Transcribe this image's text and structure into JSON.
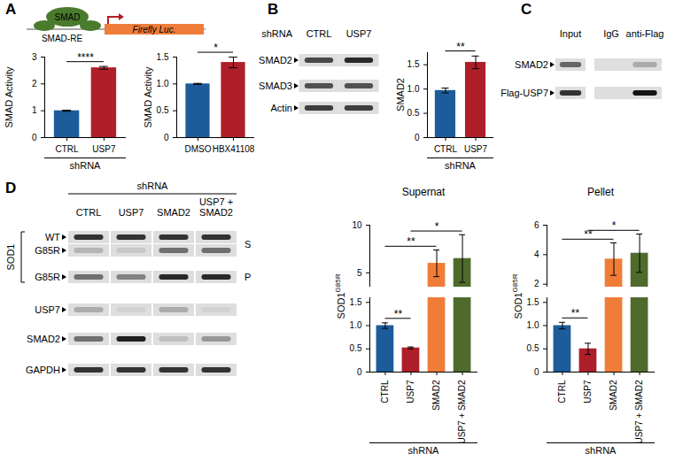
{
  "chart_data": [
    {
      "type": "bar",
      "categories": [
        "CTRL",
        "USP7"
      ],
      "group_label": "shRNA",
      "ylabel": "SMAD Activity",
      "values": [
        1.0,
        2.6
      ],
      "errors": [
        0.02,
        0.05
      ],
      "colors": [
        "#1c5c9a",
        "#ae1f2a"
      ],
      "ylim": [
        0,
        3
      ],
      "yticks": [
        0,
        1,
        2,
        3
      ],
      "significance": [
        {
          "from": "CTRL",
          "to": "USP7",
          "label": "****"
        }
      ]
    },
    {
      "type": "bar",
      "categories": [
        "DMSO",
        "HBX41108"
      ],
      "ylabel": "SMAD Activity",
      "values": [
        1.0,
        1.4
      ],
      "errors": [
        0.01,
        0.1
      ],
      "colors": [
        "#1c5c9a",
        "#ae1f2a"
      ],
      "ylim": [
        0,
        1.5
      ],
      "yticks": [
        0,
        0.5,
        {
          "value": 1,
          "label": "1.0"
        },
        1.5
      ],
      "significance": [
        {
          "from": "DMSO",
          "to": "HBX41108",
          "label": "*"
        }
      ]
    },
    {
      "type": "bar",
      "categories": [
        "CTRL",
        "USP7"
      ],
      "group_label": "shRNA",
      "ylabel": "SMAD2",
      "values": [
        0.97,
        1.55
      ],
      "errors": [
        0.05,
        0.13
      ],
      "colors": [
        "#1c5c9a",
        "#ae1f2a"
      ],
      "ylim": [
        0,
        1.75
      ],
      "yticks": [
        0,
        0.5,
        {
          "value": 1,
          "label": "1.0"
        },
        1.5
      ],
      "significance": [
        {
          "from": "CTRL",
          "to": "USP7",
          "label": "**"
        }
      ]
    },
    {
      "type": "bar",
      "title": "Supernat",
      "categories": [
        "CTRL",
        "USP7",
        "SMAD2",
        "USP7 + SMAD2"
      ],
      "group_label": "shRNA",
      "ylabel": "SOD1",
      "ylabel_sup": "G85R",
      "values": [
        1.0,
        0.52,
        6.0,
        6.5
      ],
      "errors": [
        0.06,
        0.02,
        1.4,
        2.5
      ],
      "colors": [
        "#1c5c9a",
        "#ae1f2a",
        "#f07d37",
        "#4f6b2c"
      ],
      "ylim": [
        0,
        10
      ],
      "y_break": [
        1.6,
        3.5
      ],
      "yticks": [
        0,
        0.5,
        {
          "value": 1,
          "label": "1.0"
        },
        1.5,
        5,
        10
      ],
      "significance": [
        {
          "from": "CTRL",
          "to": "USP7",
          "label": "**"
        },
        {
          "from": "CTRL",
          "to": "SMAD2",
          "label": "**"
        },
        {
          "from": "USP7",
          "to": "USP7 + SMAD2",
          "label": "*"
        }
      ]
    },
    {
      "type": "bar",
      "title": "Pellet",
      "categories": [
        "CTRL",
        "USP7",
        "SMAD2",
        "USP7 + SMAD2"
      ],
      "group_label": "shRNA",
      "ylabel": "SOD1",
      "ylabel_sup": "G85R",
      "values": [
        1.0,
        0.5,
        3.7,
        4.1
      ],
      "errors": [
        0.07,
        0.12,
        1.1,
        1.3
      ],
      "colors": [
        "#1c5c9a",
        "#ae1f2a",
        "#f07d37",
        "#4f6b2c"
      ],
      "ylim": [
        0,
        6
      ],
      "y_break": [
        1.6,
        1.8
      ],
      "yticks": [
        0,
        0.5,
        {
          "value": 1,
          "label": "1.0"
        },
        1.5,
        2,
        4,
        6
      ],
      "significance": [
        {
          "from": "CTRL",
          "to": "USP7",
          "label": "**"
        },
        {
          "from": "CTRL",
          "to": "SMAD2",
          "label": "**"
        },
        {
          "from": "USP7",
          "to": "USP7 + SMAD2",
          "label": "*"
        }
      ]
    }
  ],
  "diagram": {
    "panel": "A",
    "protein": "SMAD",
    "element": "SMAD-RE",
    "reporter": "Firefly Luc."
  },
  "blots": [
    {
      "panel": "B",
      "header": "shRNA",
      "lanes": [
        "CTRL",
        "USP7"
      ],
      "rows": [
        {
          "label": "SMAD2",
          "bands": [
            0.75,
            0.9
          ]
        },
        {
          "label": "SMAD3",
          "bands": [
            0.7,
            0.7
          ]
        },
        {
          "label": "Actin",
          "bands": [
            0.8,
            0.8
          ]
        }
      ]
    },
    {
      "panel": "C",
      "lanes": [
        "Input",
        "IgG",
        "anti-Flag"
      ],
      "rows": [
        {
          "label": "SMAD2",
          "bands": [
            0.6,
            0,
            0.25
          ]
        },
        {
          "label": "Flag-USP7",
          "bands": [
            0.85,
            0,
            1
          ]
        }
      ]
    },
    {
      "panel": "D",
      "header": "shRNA",
      "lanes": [
        "CTRL",
        "USP7",
        "SMAD2",
        "USP7 + SMAD2"
      ],
      "rows": [
        {
          "label": "WT",
          "group": "SOD1",
          "side": "S",
          "bands": [
            0.85,
            0.85,
            0.85,
            0.85
          ]
        },
        {
          "label": "G85R",
          "group": "SOD1",
          "side": "S",
          "bands": [
            0.2,
            0.1,
            0.55,
            0.55
          ]
        },
        {
          "label": "G85R",
          "group": "SOD1",
          "side": "P",
          "bands": [
            0.55,
            0.45,
            0.9,
            0.9
          ]
        },
        {
          "label": "USP7",
          "bands": [
            0.25,
            0.05,
            0.25,
            0.05
          ]
        },
        {
          "label": "SMAD2",
          "bands": [
            0.55,
            0.95,
            0.15,
            0.35
          ]
        },
        {
          "label": "GAPDH",
          "bands": [
            0.85,
            0.85,
            0.85,
            0.85
          ]
        }
      ]
    }
  ]
}
